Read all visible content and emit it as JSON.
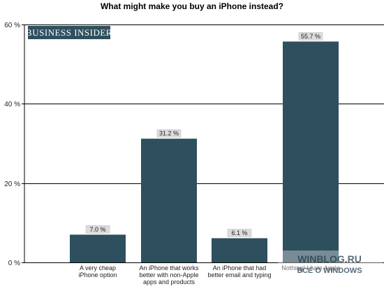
{
  "chart_data": {
    "type": "bar",
    "title": "What might make you buy an iPhone instead?",
    "categories": [
      [
        "A very cheap",
        "iPhone option"
      ],
      [
        "An iPhone that works",
        "better with non-Apple",
        "apps and products"
      ],
      [
        "An iPhone that had",
        "better email and typing"
      ],
      [
        "Nothing! I hate Apple"
      ]
    ],
    "values": [
      7.0,
      31.2,
      6.1,
      55.7
    ],
    "data_labels": [
      "7.0 %",
      "31.2 %",
      "6.1 %",
      "55.7 %"
    ],
    "y_ticks": [
      0,
      20,
      40,
      60
    ],
    "y_tick_labels": [
      "0 %",
      "20 %",
      "40 %",
      "60 %"
    ],
    "ylim": [
      0,
      60
    ],
    "grid": true,
    "bar_color": "#2e4f5e"
  },
  "branding": {
    "logo_text": "BUSINESS INSIDER",
    "logo_color": "#2e4f5e"
  },
  "watermark": {
    "line1": "WINBLOG.RU",
    "line2": "ВСЕ О WINDOWS"
  }
}
